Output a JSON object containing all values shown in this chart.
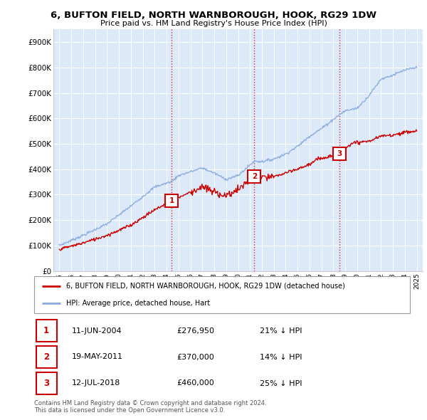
{
  "title": "6, BUFTON FIELD, NORTH WARNBOROUGH, HOOK, RG29 1DW",
  "subtitle": "Price paid vs. HM Land Registry's House Price Index (HPI)",
  "ylim": [
    0,
    950000
  ],
  "yticks": [
    0,
    100000,
    200000,
    300000,
    400000,
    500000,
    600000,
    700000,
    800000,
    900000
  ],
  "ytick_labels": [
    "£0",
    "£100K",
    "£200K",
    "£300K",
    "£400K",
    "£500K",
    "£600K",
    "£700K",
    "£800K",
    "£900K"
  ],
  "bg_color": "#dce9f8",
  "grid_color": "#ffffff",
  "sale_color": "#cc0000",
  "hpi_color": "#88aadd",
  "sale_label": "6, BUFTON FIELD, NORTH WARNBOROUGH, HOOK, RG29 1DW (detached house)",
  "hpi_label": "HPI: Average price, detached house, Hart",
  "transactions": [
    {
      "date": 2004.44,
      "price": 276950,
      "label": "1"
    },
    {
      "date": 2011.37,
      "price": 370000,
      "label": "2"
    },
    {
      "date": 2018.52,
      "price": 460000,
      "label": "3"
    }
  ],
  "transaction_table": [
    {
      "num": "1",
      "date": "11-JUN-2004",
      "price": "£276,950",
      "hpi": "21% ↓ HPI"
    },
    {
      "num": "2",
      "date": "19-MAY-2011",
      "price": "£370,000",
      "hpi": "14% ↓ HPI"
    },
    {
      "num": "3",
      "date": "12-JUL-2018",
      "price": "£460,000",
      "hpi": "25% ↓ HPI"
    }
  ],
  "footer": "Contains HM Land Registry data © Crown copyright and database right 2024.\nThis data is licensed under the Open Government Licence v3.0.",
  "vline_color": "#cc0000",
  "xlim_start": 1994.5,
  "xlim_end": 2025.5
}
